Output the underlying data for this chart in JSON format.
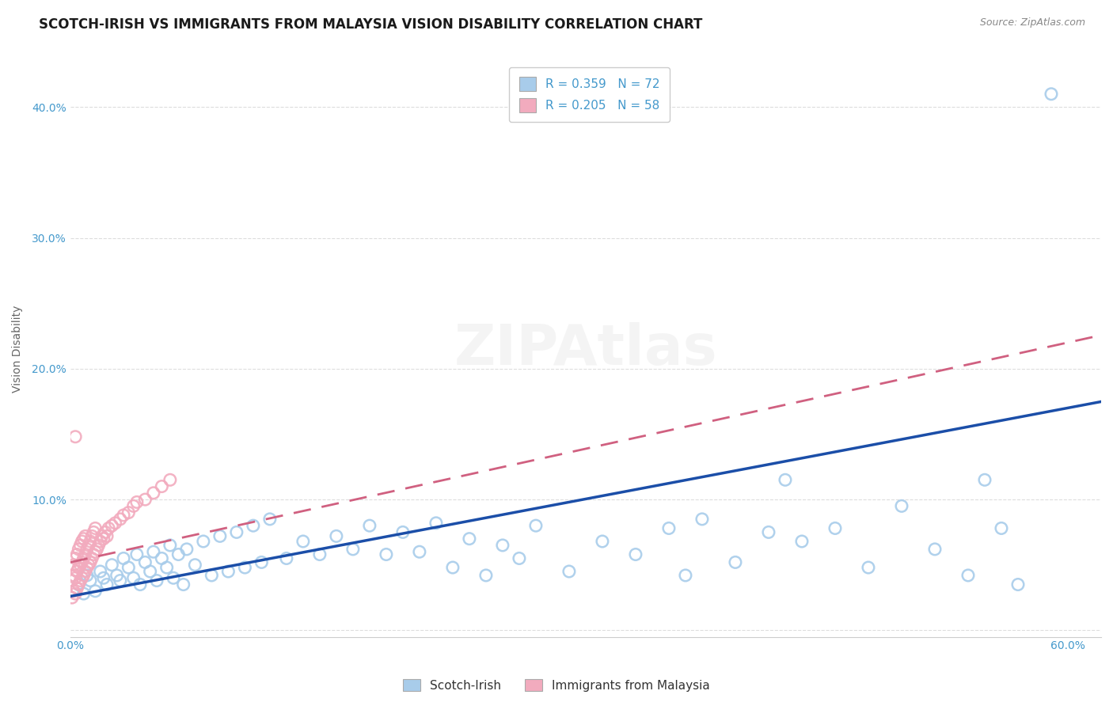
{
  "title": "SCOTCH-IRISH VS IMMIGRANTS FROM MALAYSIA VISION DISABILITY CORRELATION CHART",
  "source": "Source: ZipAtlas.com",
  "ylabel": "Vision Disability",
  "xlim": [
    0.0,
    0.62
  ],
  "ylim": [
    -0.005,
    0.435
  ],
  "yticks": [
    0.0,
    0.1,
    0.2,
    0.3,
    0.4
  ],
  "ytick_labels": [
    "",
    "10.0%",
    "20.0%",
    "30.0%",
    "40.0%"
  ],
  "r_blue": 0.359,
  "n_blue": 72,
  "r_pink": 0.205,
  "n_pink": 58,
  "blue_color": "#A8CCEA",
  "pink_color": "#F2ABBE",
  "trendline_blue": "#1B4EA8",
  "trendline_pink": "#D06080",
  "legend_label_blue": "Scotch-Irish",
  "legend_label_pink": "Immigrants from Malaysia",
  "blue_intercept": 0.026,
  "blue_slope": 0.24,
  "pink_intercept": 0.052,
  "pink_slope": 0.28,
  "blue_scatter_x": [
    0.005,
    0.008,
    0.01,
    0.012,
    0.015,
    0.018,
    0.02,
    0.022,
    0.025,
    0.028,
    0.03,
    0.032,
    0.035,
    0.038,
    0.04,
    0.042,
    0.045,
    0.048,
    0.05,
    0.052,
    0.055,
    0.058,
    0.06,
    0.062,
    0.065,
    0.068,
    0.07,
    0.075,
    0.08,
    0.085,
    0.09,
    0.095,
    0.1,
    0.105,
    0.11,
    0.115,
    0.12,
    0.13,
    0.14,
    0.15,
    0.16,
    0.17,
    0.18,
    0.19,
    0.2,
    0.21,
    0.22,
    0.23,
    0.24,
    0.25,
    0.26,
    0.27,
    0.28,
    0.3,
    0.32,
    0.34,
    0.36,
    0.37,
    0.38,
    0.4,
    0.42,
    0.43,
    0.44,
    0.46,
    0.48,
    0.5,
    0.52,
    0.54,
    0.55,
    0.56,
    0.57,
    0.59
  ],
  "blue_scatter_y": [
    0.035,
    0.028,
    0.042,
    0.038,
    0.03,
    0.045,
    0.04,
    0.035,
    0.05,
    0.042,
    0.038,
    0.055,
    0.048,
    0.04,
    0.058,
    0.035,
    0.052,
    0.045,
    0.06,
    0.038,
    0.055,
    0.048,
    0.065,
    0.04,
    0.058,
    0.035,
    0.062,
    0.05,
    0.068,
    0.042,
    0.072,
    0.045,
    0.075,
    0.048,
    0.08,
    0.052,
    0.085,
    0.055,
    0.068,
    0.058,
    0.072,
    0.062,
    0.08,
    0.058,
    0.075,
    0.06,
    0.082,
    0.048,
    0.07,
    0.042,
    0.065,
    0.055,
    0.08,
    0.045,
    0.068,
    0.058,
    0.078,
    0.042,
    0.085,
    0.052,
    0.075,
    0.115,
    0.068,
    0.078,
    0.048,
    0.095,
    0.062,
    0.042,
    0.115,
    0.078,
    0.035,
    0.41
  ],
  "pink_scatter_x": [
    0.001,
    0.001,
    0.002,
    0.002,
    0.002,
    0.003,
    0.003,
    0.003,
    0.004,
    0.004,
    0.004,
    0.005,
    0.005,
    0.005,
    0.006,
    0.006,
    0.006,
    0.007,
    0.007,
    0.007,
    0.008,
    0.008,
    0.008,
    0.009,
    0.009,
    0.009,
    0.01,
    0.01,
    0.011,
    0.011,
    0.012,
    0.012,
    0.013,
    0.013,
    0.014,
    0.014,
    0.015,
    0.015,
    0.016,
    0.017,
    0.018,
    0.019,
    0.02,
    0.021,
    0.022,
    0.023,
    0.025,
    0.027,
    0.03,
    0.032,
    0.035,
    0.038,
    0.04,
    0.045,
    0.05,
    0.055,
    0.06,
    0.003
  ],
  "pink_scatter_y": [
    0.025,
    0.038,
    0.03,
    0.042,
    0.05,
    0.028,
    0.04,
    0.055,
    0.032,
    0.045,
    0.058,
    0.035,
    0.048,
    0.062,
    0.038,
    0.05,
    0.065,
    0.04,
    0.052,
    0.068,
    0.042,
    0.055,
    0.07,
    0.045,
    0.058,
    0.072,
    0.048,
    0.062,
    0.05,
    0.065,
    0.052,
    0.068,
    0.055,
    0.072,
    0.058,
    0.075,
    0.06,
    0.078,
    0.062,
    0.065,
    0.068,
    0.072,
    0.07,
    0.075,
    0.072,
    0.078,
    0.08,
    0.082,
    0.085,
    0.088,
    0.09,
    0.095,
    0.098,
    0.1,
    0.105,
    0.11,
    0.115,
    0.148
  ],
  "grid_color": "#DDDDDD",
  "background_color": "#FFFFFF",
  "title_fontsize": 12,
  "axis_label_fontsize": 10,
  "tick_fontsize": 10,
  "legend_fontsize": 11
}
